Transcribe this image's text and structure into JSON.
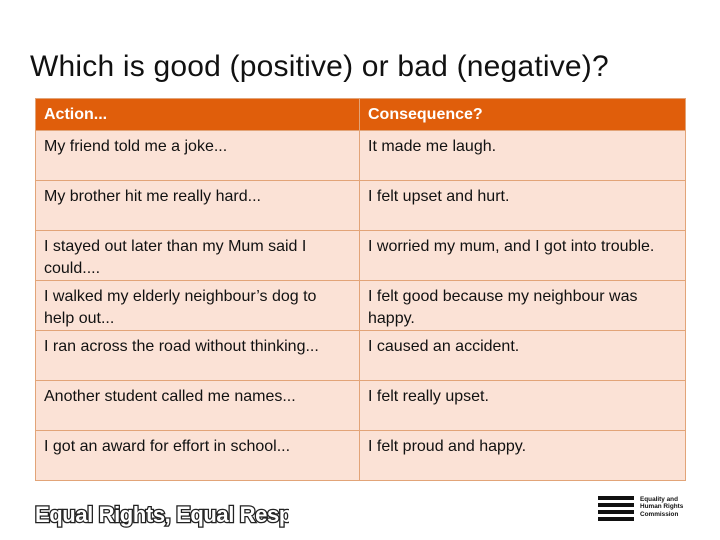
{
  "title": "Which is good (positive) or bad (negative)?",
  "table": {
    "headers": [
      "Action...",
      "Consequence?"
    ],
    "rows": [
      [
        "My friend told me a joke...",
        "It made me laugh."
      ],
      [
        "My brother hit me really hard...",
        "I felt upset and hurt."
      ],
      [
        "I stayed out later than my Mum said I could....",
        "I worried my mum, and I got into trouble."
      ],
      [
        "I walked my elderly neighbour’s dog to help out...",
        "I felt good because my neighbour was happy."
      ],
      [
        "I ran across the road without thinking...",
        "I caused an accident."
      ],
      [
        "Another student called me names...",
        "I felt really upset."
      ],
      [
        "I got an award for effort in school...",
        "I felt proud and happy."
      ]
    ]
  },
  "footer": {
    "campaign_logo": "Equal Rights, Equal Respect",
    "org_logo": [
      "Equality and",
      "Human Rights",
      "Commission"
    ]
  },
  "colors": {
    "header_bg": "#e05e0b",
    "row_bg": "#fbe2d6",
    "border": "#e2a478"
  }
}
